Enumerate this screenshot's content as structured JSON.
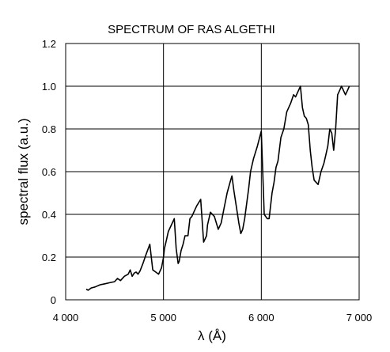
{
  "chart_data": {
    "type": "line",
    "title": "SPECTRUM OF RAS ALGETHI",
    "xlabel": "λ (Å)",
    "ylabel": "spectral flux (a.u.)",
    "xlim": [
      4000,
      7000
    ],
    "ylim": [
      0,
      1.2
    ],
    "x_ticks": [
      4000,
      5000,
      6000,
      7000
    ],
    "x_tick_labels": [
      "4 000",
      "5 000",
      "6 000",
      "7 000"
    ],
    "y_ticks": [
      0,
      0.2,
      0.4,
      0.6,
      0.8,
      1.0,
      1.2
    ],
    "y_tick_labels": [
      "0",
      "0.2",
      "0.4",
      "0.6",
      "0.8",
      "1.0",
      "1.2"
    ],
    "grid": true,
    "line_color": "#000000",
    "series": [
      {
        "x": [
          4210,
          4230,
          4260,
          4300,
          4350,
          4400,
          4450,
          4500,
          4530,
          4560,
          4600,
          4640,
          4660,
          4680,
          4700,
          4720,
          4740,
          4760,
          4790,
          4820,
          4860,
          4890,
          4920,
          4950,
          4960,
          4980,
          5000,
          5010,
          5030,
          5050,
          5080,
          5110,
          5130,
          5150,
          5160,
          5180,
          5200,
          5220,
          5250,
          5270,
          5290,
          5320,
          5340,
          5380,
          5410,
          5440,
          5450,
          5480,
          5520,
          5560,
          5590,
          5620,
          5650,
          5680,
          5700,
          5720,
          5740,
          5770,
          5790,
          5810,
          5830,
          5850,
          5870,
          5890,
          5920,
          5960,
          6000,
          6030,
          6060,
          6080,
          6110,
          6130,
          6150,
          6170,
          6200,
          6230,
          6260,
          6300,
          6330,
          6350,
          6380,
          6400,
          6420,
          6440,
          6460,
          6480,
          6500,
          6520,
          6540,
          6580,
          6610,
          6640,
          6660,
          6680,
          6700,
          6720,
          6740,
          6760,
          6780,
          6800,
          6820,
          6840,
          6860,
          6880,
          6900
        ],
        "values": [
          0.05,
          0.045,
          0.055,
          0.06,
          0.07,
          0.075,
          0.08,
          0.085,
          0.1,
          0.09,
          0.11,
          0.12,
          0.14,
          0.11,
          0.125,
          0.13,
          0.12,
          0.135,
          0.17,
          0.21,
          0.26,
          0.14,
          0.13,
          0.12,
          0.13,
          0.15,
          0.2,
          0.24,
          0.28,
          0.32,
          0.35,
          0.38,
          0.24,
          0.17,
          0.18,
          0.23,
          0.26,
          0.3,
          0.3,
          0.38,
          0.39,
          0.42,
          0.44,
          0.47,
          0.27,
          0.3,
          0.35,
          0.41,
          0.39,
          0.33,
          0.36,
          0.43,
          0.5,
          0.55,
          0.58,
          0.51,
          0.45,
          0.36,
          0.31,
          0.33,
          0.38,
          0.45,
          0.52,
          0.6,
          0.66,
          0.72,
          0.79,
          0.4,
          0.38,
          0.38,
          0.5,
          0.55,
          0.62,
          0.65,
          0.76,
          0.8,
          0.88,
          0.92,
          0.96,
          0.95,
          0.98,
          1.0,
          0.9,
          0.86,
          0.85,
          0.82,
          0.7,
          0.62,
          0.56,
          0.54,
          0.6,
          0.64,
          0.68,
          0.72,
          0.8,
          0.78,
          0.7,
          0.8,
          0.96,
          0.98,
          1.0,
          0.98,
          0.96,
          0.98,
          1.0
        ]
      }
    ]
  }
}
